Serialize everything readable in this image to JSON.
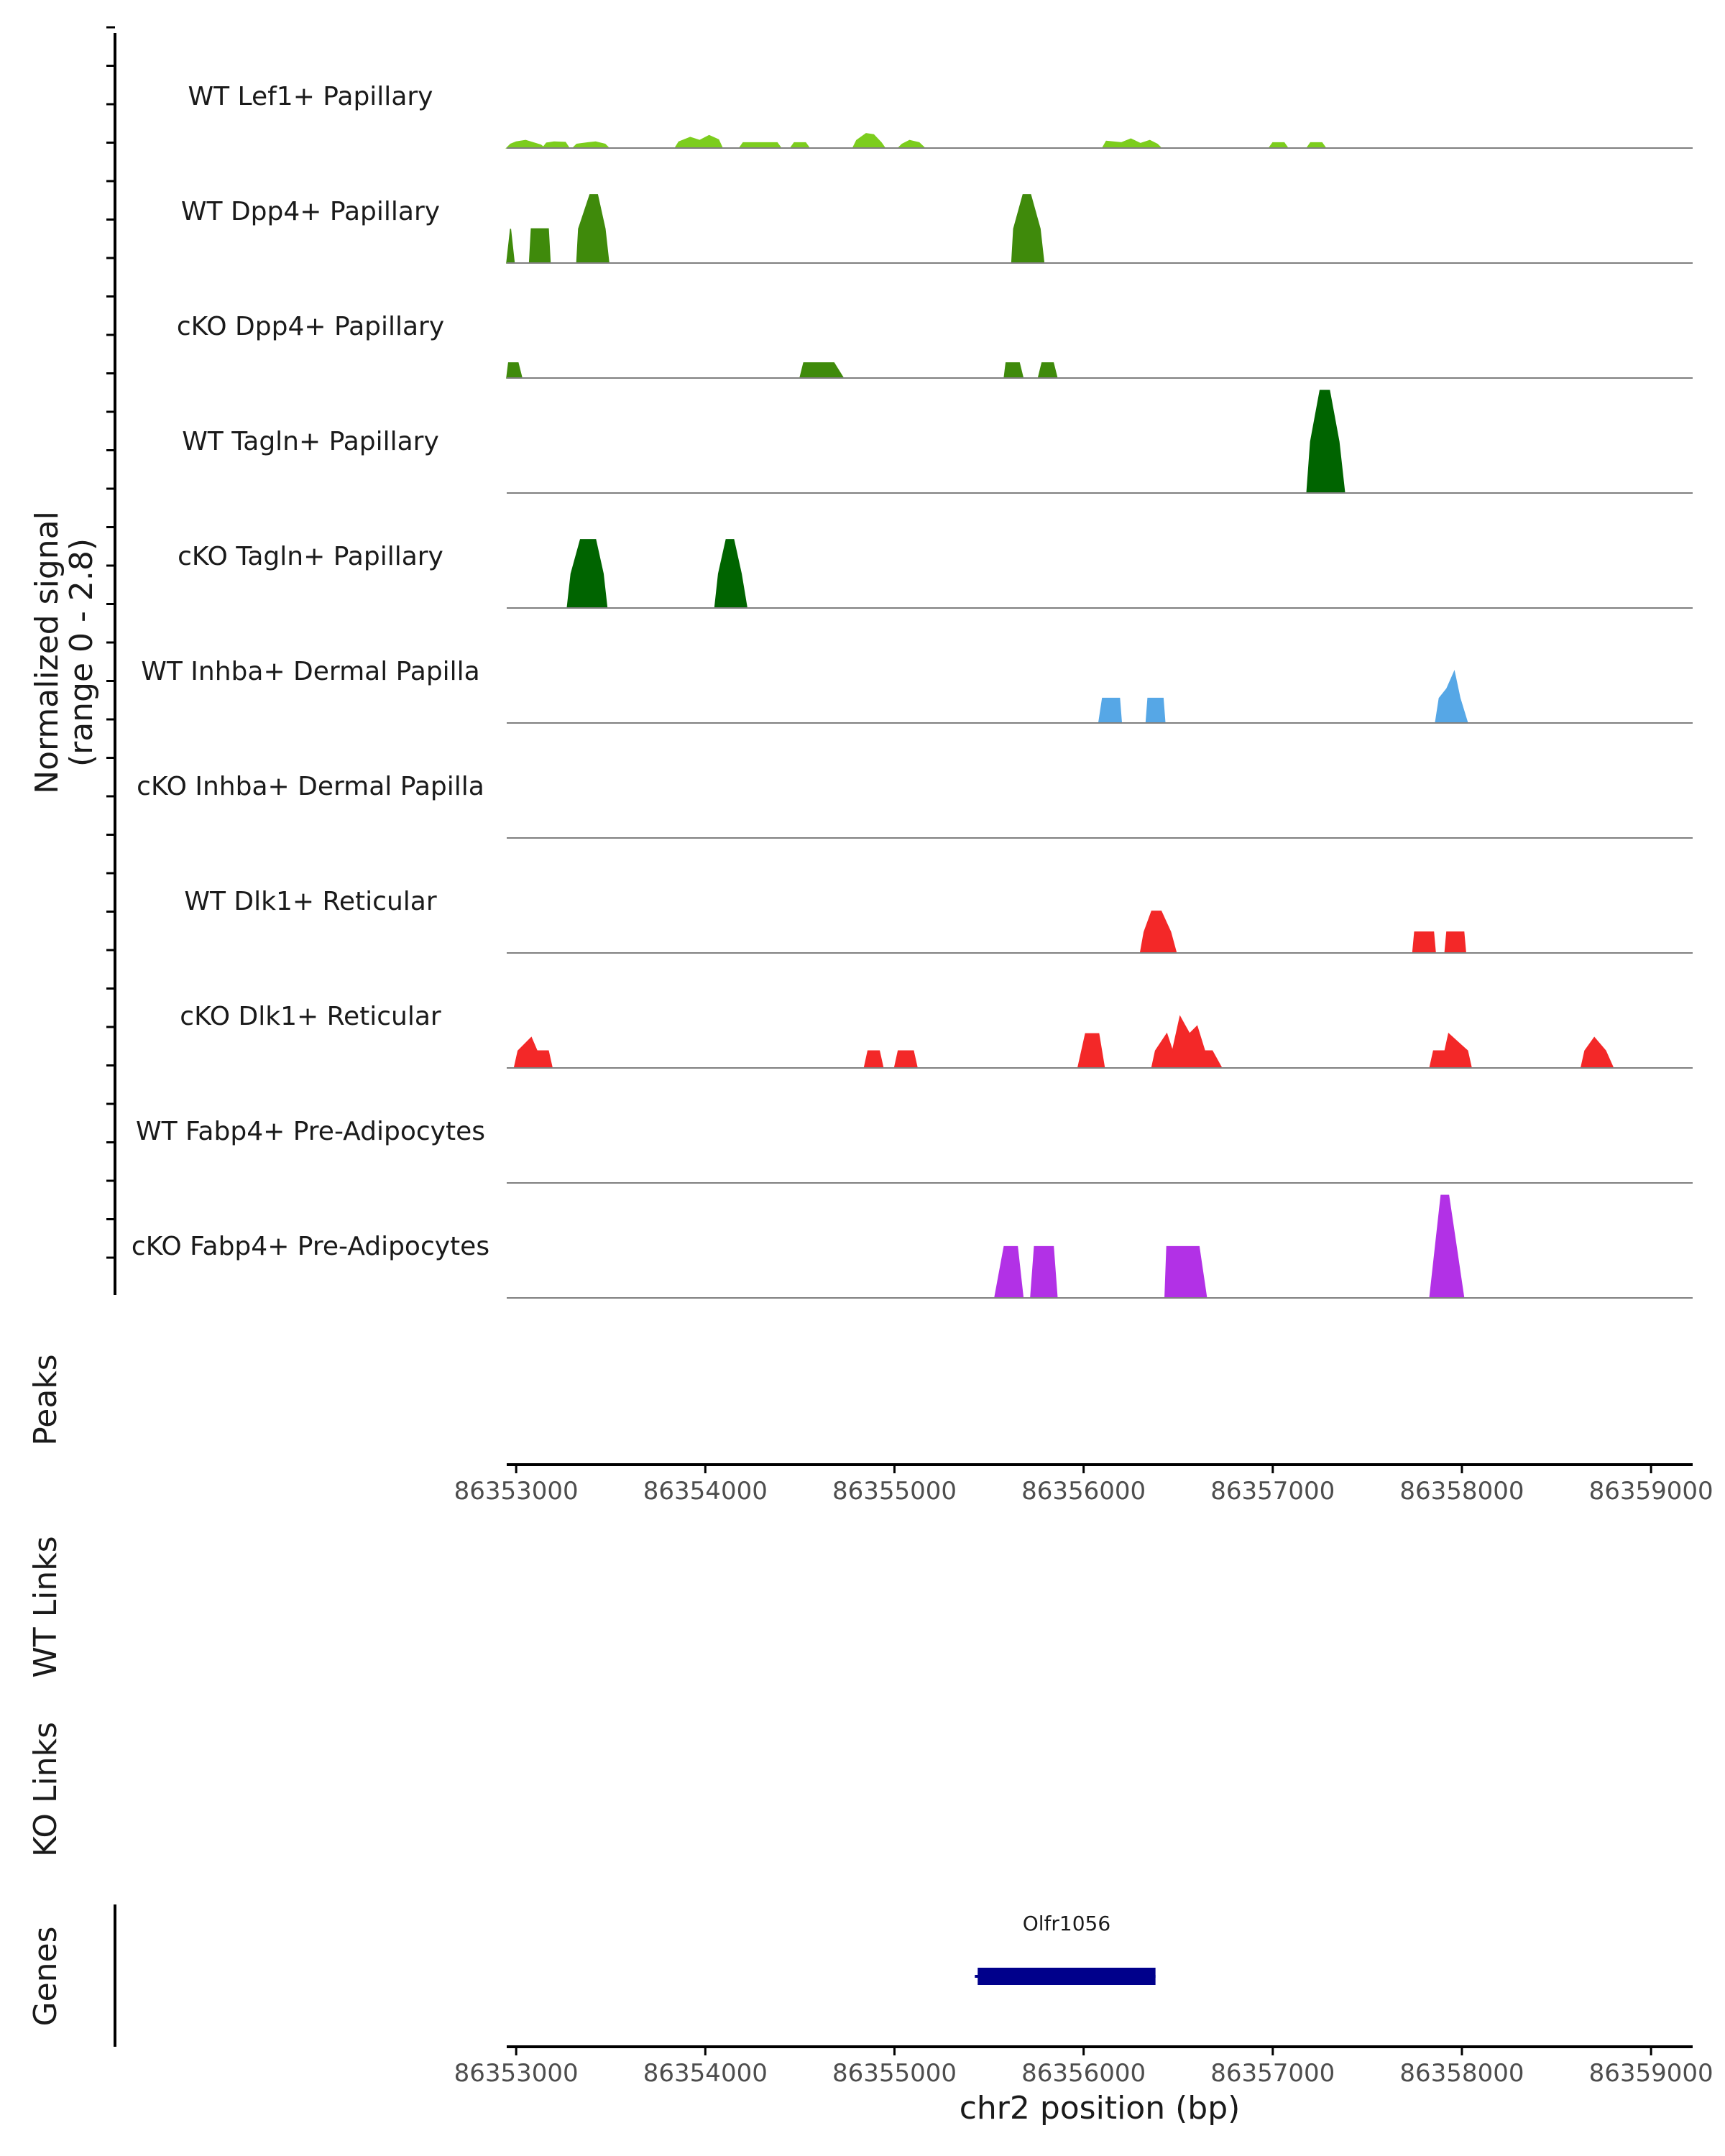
{
  "chart_data": {
    "type": "area",
    "title": "",
    "chromosome": "chr2",
    "xlabel": "chr2 position (bp)",
    "xlim": [
      86352950,
      86359220
    ],
    "x_ticks": [
      86353000,
      86354000,
      86355000,
      86356000,
      86357000,
      86358000,
      86359000
    ],
    "ylabel_line1": "Normalized signal",
    "ylabel_line2": "(range 0 - 2.8)",
    "ylim": [
      0,
      2.8
    ],
    "series": [
      {
        "name": "WT Lef1+ Papillary",
        "color": "#7ccd1e",
        "peaks": [
          {
            "x": [
              86352950,
              86352970,
              86353000,
              86353050,
              86353130,
              86353150
            ],
            "y": [
              0,
              0.1,
              0.16,
              0.2,
              0.08,
              0
            ]
          },
          {
            "x": [
              86353140,
              86353160,
              86353200,
              86353260,
              86353280
            ],
            "y": [
              0,
              0.13,
              0.16,
              0.15,
              0
            ]
          },
          {
            "x": [
              86353300,
              86353320,
              86353380,
              86353420,
              86353470,
              86353490
            ],
            "y": [
              0,
              0.1,
              0.14,
              0.16,
              0.1,
              0
            ]
          },
          {
            "x": [
              86353840,
              86353860,
              86353920,
              86353970,
              86354020,
              86354070,
              86354090
            ],
            "y": [
              0,
              0.16,
              0.28,
              0.2,
              0.33,
              0.22,
              0
            ]
          },
          {
            "x": [
              86354180,
              86354200,
              86354380,
              86354400
            ],
            "y": [
              0,
              0.14,
              0.14,
              0
            ]
          },
          {
            "x": [
              86354450,
              86354470,
              86354530,
              86354550
            ],
            "y": [
              0,
              0.14,
              0.14,
              0
            ]
          },
          {
            "x": [
              86354780,
              86354800,
              86354850,
              86354890,
              86354930,
              86354950
            ],
            "y": [
              0,
              0.2,
              0.38,
              0.35,
              0.14,
              0
            ]
          },
          {
            "x": [
              86355020,
              86355040,
              86355080,
              86355130,
              86355160
            ],
            "y": [
              0,
              0.1,
              0.2,
              0.14,
              0
            ]
          },
          {
            "x": [
              86356100,
              86356120,
              86356200,
              86356250,
              86356300,
              86356350,
              86356390,
              86356410
            ],
            "y": [
              0,
              0.18,
              0.14,
              0.24,
              0.12,
              0.2,
              0.1,
              0
            ]
          },
          {
            "x": [
              86356980,
              86357000,
              86357060,
              86357080
            ],
            "y": [
              0,
              0.14,
              0.14,
              0
            ]
          },
          {
            "x": [
              86357180,
              86357200,
              86357260,
              86357280
            ],
            "y": [
              0,
              0.14,
              0.14,
              0
            ]
          }
        ]
      },
      {
        "name": "WT Dpp4+ Papillary",
        "color": "#3f8a0b",
        "peaks": [
          {
            "x": [
              86352950,
              86352970,
              86352990
            ],
            "y": [
              0,
              0.9,
              0
            ]
          },
          {
            "x": [
              86353070,
              86353080,
              86353170,
              86353180
            ],
            "y": [
              0,
              0.9,
              0.9,
              0
            ]
          },
          {
            "x": [
              86353320,
              86353330,
              86353390,
              86353430,
              86353470,
              86353490
            ],
            "y": [
              0,
              0.9,
              1.8,
              1.8,
              0.9,
              0
            ]
          },
          {
            "x": [
              86355620,
              86355630,
              86355680,
              86355720,
              86355770,
              86355790
            ],
            "y": [
              0,
              0.9,
              1.8,
              1.8,
              0.9,
              0
            ]
          }
        ]
      },
      {
        "name": "cKO Dpp4+ Papillary",
        "color": "#3f8a0b",
        "peaks": [
          {
            "x": [
              86352950,
              86352960,
              86353010,
              86353030
            ],
            "y": [
              0,
              0.4,
              0.4,
              0
            ]
          },
          {
            "x": [
              86354500,
              86354520,
              86354680,
              86354730
            ],
            "y": [
              0,
              0.4,
              0.4,
              0
            ]
          },
          {
            "x": [
              86355580,
              86355590,
              86355660,
              86355680
            ],
            "y": [
              0,
              0.4,
              0.4,
              0
            ]
          },
          {
            "x": [
              86355760,
              86355780,
              86355840,
              86355860
            ],
            "y": [
              0,
              0.4,
              0.4,
              0
            ]
          }
        ]
      },
      {
        "name": "WT Tagln+ Papillary",
        "color": "#006400",
        "peaks": [
          {
            "x": [
              86357180,
              86357200,
              86357250,
              86357300,
              86357350,
              86357380
            ],
            "y": [
              0,
              1.35,
              2.7,
              2.7,
              1.35,
              0
            ]
          }
        ]
      },
      {
        "name": "cKO Tagln+ Papillary",
        "color": "#006400",
        "peaks": [
          {
            "x": [
              86353270,
              86353290,
              86353340,
              86353420,
              86353460,
              86353480
            ],
            "y": [
              0,
              0.9,
              1.8,
              1.8,
              0.9,
              0
            ]
          },
          {
            "x": [
              86354050,
              86354070,
              86354110,
              86354150,
              86354190,
              86354220
            ],
            "y": [
              0,
              0.9,
              1.8,
              1.8,
              0.9,
              0
            ]
          }
        ]
      },
      {
        "name": "WT Inhba+ Dermal Papilla",
        "color": "#56a7e6",
        "peaks": [
          {
            "x": [
              86356080,
              86356100,
              86356190,
              86356200
            ],
            "y": [
              0,
              0.65,
              0.65,
              0
            ]
          },
          {
            "x": [
              86356330,
              86356340,
              86356420,
              86356430
            ],
            "y": [
              0,
              0.65,
              0.65,
              0
            ]
          },
          {
            "x": [
              86357860,
              86357880,
              86357920,
              86357960,
              86357990,
              86358030
            ],
            "y": [
              0,
              0.65,
              0.9,
              1.35,
              0.65,
              0
            ]
          }
        ]
      },
      {
        "name": "cKO Inhba+ Dermal Papilla",
        "color": "#56a7e6",
        "peaks": []
      },
      {
        "name": "WT Dlk1+ Reticular",
        "color": "#f32828",
        "peaks": [
          {
            "x": [
              86356300,
              86356320,
              86356360,
              86356410,
              86356460,
              86356490
            ],
            "y": [
              0,
              0.55,
              1.1,
              1.1,
              0.55,
              0
            ]
          },
          {
            "x": [
              86357740,
              86357750,
              86357850,
              86357860
            ],
            "y": [
              0,
              0.55,
              0.55,
              0
            ]
          },
          {
            "x": [
              86357910,
              86357920,
              86358010,
              86358020
            ],
            "y": [
              0,
              0.55,
              0.55,
              0
            ]
          }
        ]
      },
      {
        "name": "cKO Dlk1+ Reticular",
        "color": "#f32828",
        "peaks": [
          {
            "x": [
              86352990,
              86353010,
              86353080,
              86353110,
              86353170,
              86353190
            ],
            "y": [
              0,
              0.45,
              0.8,
              0.45,
              0.45,
              0
            ]
          },
          {
            "x": [
              86354840,
              86354860,
              86354920,
              86354940
            ],
            "y": [
              0,
              0.45,
              0.45,
              0
            ]
          },
          {
            "x": [
              86355000,
              86355020,
              86355100,
              86355120
            ],
            "y": [
              0,
              0.45,
              0.45,
              0
            ]
          },
          {
            "x": [
              86355970,
              86355990,
              86356010,
              86356080,
              86356110
            ],
            "y": [
              0,
              0.45,
              0.9,
              0.9,
              0
            ]
          },
          {
            "x": [
              86356360,
              86356380,
              86356440,
              86356470,
              86356510,
              86356560,
              86356600,
              86356640,
              86356680,
              86356730
            ],
            "y": [
              0,
              0.45,
              0.9,
              0.45,
              1.35,
              0.9,
              1.1,
              0.45,
              0.45,
              0
            ]
          },
          {
            "x": [
              86357830,
              86357850,
              86357910,
              86357930,
              86358030,
              86358050
            ],
            "y": [
              0,
              0.45,
              0.45,
              0.9,
              0.45,
              0
            ]
          },
          {
            "x": [
              86358630,
              86358650,
              86358700,
              86358760,
              86358800
            ],
            "y": [
              0,
              0.45,
              0.8,
              0.45,
              0
            ]
          }
        ]
      },
      {
        "name": "WT Fabp4+ Pre-Adipocytes",
        "color": "#b231e6",
        "peaks": []
      },
      {
        "name": "cKO Fabp4+ Pre-Adipocytes",
        "color": "#b231e6",
        "peaks": [
          {
            "x": [
              86355530,
              86355580,
              86355650,
              86355680
            ],
            "y": [
              0,
              1.35,
              1.35,
              0
            ]
          },
          {
            "x": [
              86355720,
              86355740,
              86355840,
              86355860
            ],
            "y": [
              0,
              1.35,
              1.35,
              0
            ]
          },
          {
            "x": [
              86356430,
              86356440,
              86356610,
              86356650
            ],
            "y": [
              0,
              1.35,
              1.35,
              0
            ]
          },
          {
            "x": [
              86357830,
              86357860,
              86357890,
              86357930,
              86357970,
              86358010
            ],
            "y": [
              0,
              1.35,
              2.7,
              2.7,
              1.35,
              0
            ]
          }
        ]
      }
    ],
    "panels": {
      "peaks_label": "Peaks",
      "wt_links_label": "WT Links",
      "ko_links_label": "KO Links",
      "genes_label": "Genes"
    },
    "genes": [
      {
        "name": "Olfr1056",
        "start": 86355440,
        "end": 86356380,
        "color": "#00008b"
      }
    ]
  }
}
